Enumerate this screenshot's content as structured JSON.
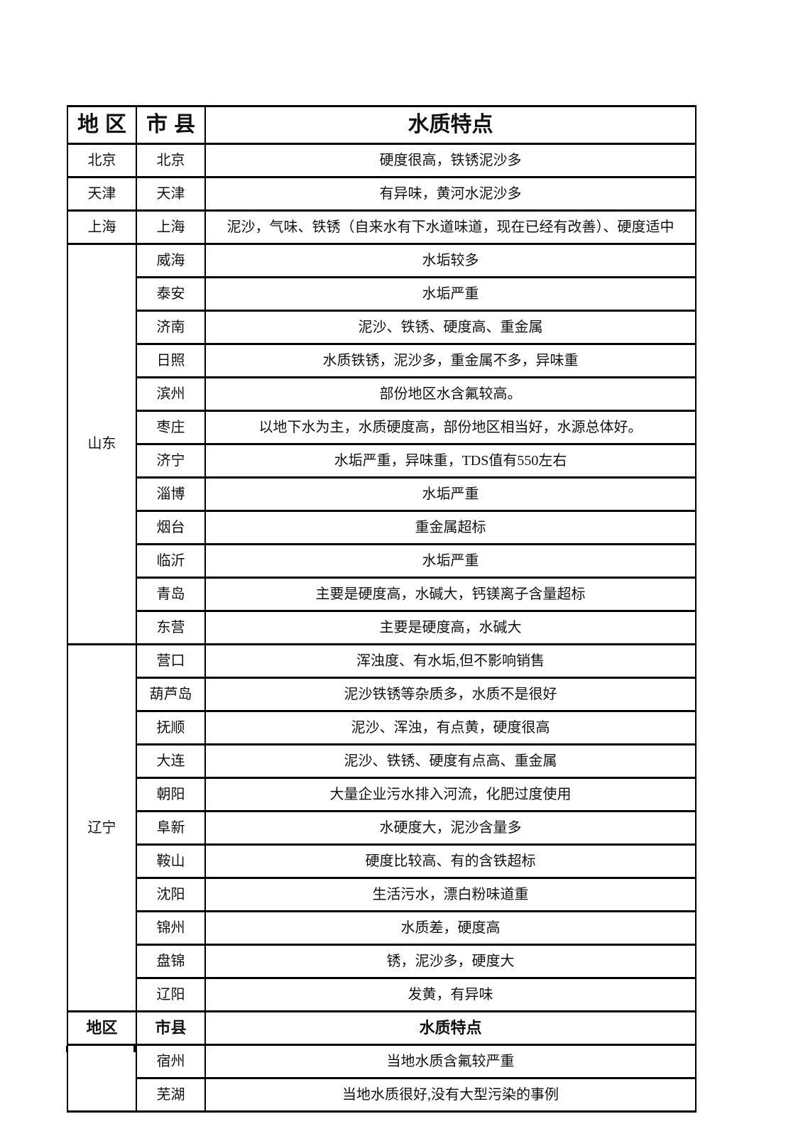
{
  "page": {
    "background": "#ffffff",
    "border_color": "#000000",
    "text_color": "#111111"
  },
  "table": {
    "header": {
      "region": "地区",
      "city": "市县",
      "feature": "水质特点"
    },
    "sections": [
      {
        "region": "北京",
        "rows": [
          {
            "city": "北京",
            "feature": "硬度很高，铁锈泥沙多"
          }
        ]
      },
      {
        "region": "天津",
        "rows": [
          {
            "city": "天津",
            "feature": "有异味，黄河水泥沙多"
          }
        ]
      },
      {
        "region": "上海",
        "rows": [
          {
            "city": "上海",
            "feature": "泥沙，气味、铁锈（自来水有下水道味道，现在已经有改善）、硬度适中"
          }
        ]
      },
      {
        "region": "山东",
        "rows": [
          {
            "city": "威海",
            "feature": "水垢较多"
          },
          {
            "city": "泰安",
            "feature": "水垢严重"
          },
          {
            "city": "济南",
            "feature": "泥沙、铁锈、硬度高、重金属"
          },
          {
            "city": "日照",
            "feature": "水质铁锈，泥沙多，重金属不多，异味重"
          },
          {
            "city": "滨州",
            "feature": "部份地区水含氟较高。"
          },
          {
            "city": "枣庄",
            "feature": "以地下水为主，水质硬度高，部份地区相当好，水源总体好。"
          },
          {
            "city": "济宁",
            "feature": "水垢严重，异味重，TDS值有550左右"
          },
          {
            "city": "淄博",
            "feature": "水垢严重"
          },
          {
            "city": "烟台",
            "feature": "重金属超标"
          },
          {
            "city": "临沂",
            "feature": "水垢严重"
          },
          {
            "city": "青岛",
            "feature": "主要是硬度高，水碱大，钙镁离子含量超标"
          },
          {
            "city": "东营",
            "feature": "主要是硬度高，水碱大"
          }
        ]
      },
      {
        "region": "辽宁",
        "rows": [
          {
            "city": "营口",
            "feature": "浑浊度、有水垢,但不影响销售"
          },
          {
            "city": "葫芦岛",
            "feature": "泥沙铁锈等杂质多，水质不是很好"
          },
          {
            "city": "抚顺",
            "feature": "泥沙、浑浊，有点黄，硬度很高"
          },
          {
            "city": "大连",
            "feature": "泥沙、铁锈、硬度有点高、重金属"
          },
          {
            "city": "朝阳",
            "feature": "大量企业污水排入河流，化肥过度使用"
          },
          {
            "city": "阜新",
            "feature": "水硬度大，泥沙含量多"
          },
          {
            "city": "鞍山",
            "feature": "硬度比较高、有的含铁超标"
          },
          {
            "city": "沈阳",
            "feature": "生活污水，漂白粉味道重"
          },
          {
            "city": "锦州",
            "feature": "水质差，硬度高"
          },
          {
            "city": "盘锦",
            "feature": "锈，泥沙多，硬度大"
          },
          {
            "city": "辽阳",
            "feature": "发黄，有异味"
          }
        ]
      },
      {
        "repeat_header": true
      },
      {
        "region": "",
        "open_bottom": true,
        "rows": [
          {
            "city": "宿州",
            "feature": "当地水质含氟较严重"
          },
          {
            "city": "芜湖",
            "feature": "当地水质很好,没有大型污染的事例"
          }
        ]
      }
    ]
  }
}
